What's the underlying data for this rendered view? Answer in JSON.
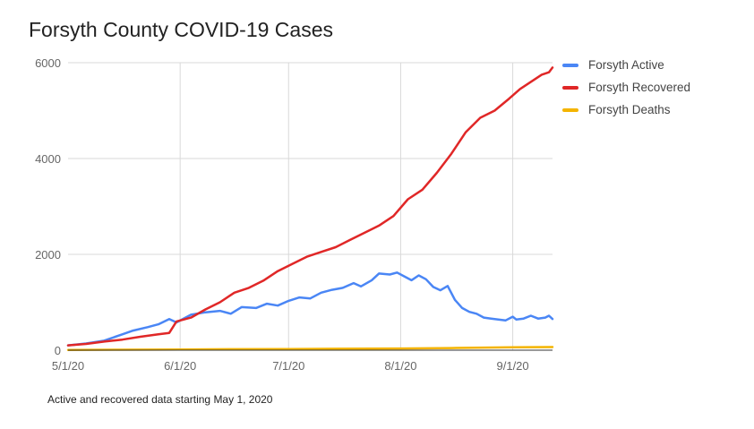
{
  "footnote": "Active and recovered data starting May 1, 2020",
  "chart_data": {
    "type": "line",
    "title": "Forsyth County COVID-19 Cases",
    "xlabel": "",
    "ylabel": "",
    "x_range": [
      "5/1/20",
      "9/12/20"
    ],
    "x_ticks": [
      {
        "date": "5/1/20",
        "label": "5/1/20"
      },
      {
        "date": "6/1/20",
        "label": "6/1/20"
      },
      {
        "date": "7/1/20",
        "label": "7/1/20"
      },
      {
        "date": "8/1/20",
        "label": "8/1/20"
      },
      {
        "date": "9/1/20",
        "label": "9/1/20"
      }
    ],
    "ylim": [
      0,
      6000
    ],
    "y_ticks": [
      0,
      2000,
      4000,
      6000
    ],
    "grid": true,
    "legend_position": "right",
    "series": [
      {
        "name": "Forsyth Active",
        "color": "#4a86f5",
        "points": [
          [
            "5/1/20",
            100
          ],
          [
            "5/6/20",
            140
          ],
          [
            "5/11/20",
            200
          ],
          [
            "5/16/20",
            330
          ],
          [
            "5/19/20",
            410
          ],
          [
            "5/23/20",
            480
          ],
          [
            "5/26/20",
            540
          ],
          [
            "5/29/20",
            650
          ],
          [
            "5/31/20",
            580
          ],
          [
            "6/4/20",
            740
          ],
          [
            "6/8/20",
            790
          ],
          [
            "6/12/20",
            820
          ],
          [
            "6/15/20",
            760
          ],
          [
            "6/18/20",
            900
          ],
          [
            "6/22/20",
            880
          ],
          [
            "6/25/20",
            970
          ],
          [
            "6/28/20",
            930
          ],
          [
            "7/1/20",
            1030
          ],
          [
            "7/4/20",
            1100
          ],
          [
            "7/7/20",
            1080
          ],
          [
            "7/10/20",
            1200
          ],
          [
            "7/13/20",
            1260
          ],
          [
            "7/16/20",
            1300
          ],
          [
            "7/19/20",
            1400
          ],
          [
            "7/21/20",
            1330
          ],
          [
            "7/24/20",
            1460
          ],
          [
            "7/26/20",
            1600
          ],
          [
            "7/29/20",
            1580
          ],
          [
            "7/31/20",
            1620
          ],
          [
            "8/2/20",
            1540
          ],
          [
            "8/4/20",
            1460
          ],
          [
            "8/6/20",
            1560
          ],
          [
            "8/8/20",
            1480
          ],
          [
            "8/10/20",
            1320
          ],
          [
            "8/12/20",
            1250
          ],
          [
            "8/14/20",
            1340
          ],
          [
            "8/16/20",
            1050
          ],
          [
            "8/18/20",
            880
          ],
          [
            "8/20/20",
            800
          ],
          [
            "8/22/20",
            760
          ],
          [
            "8/24/20",
            680
          ],
          [
            "8/26/20",
            660
          ],
          [
            "8/28/20",
            640
          ],
          [
            "8/30/20",
            620
          ],
          [
            "9/1/20",
            700
          ],
          [
            "9/2/20",
            640
          ],
          [
            "9/4/20",
            660
          ],
          [
            "9/6/20",
            720
          ],
          [
            "9/8/20",
            660
          ],
          [
            "9/10/20",
            680
          ],
          [
            "9/11/20",
            720
          ],
          [
            "9/12/20",
            650
          ]
        ]
      },
      {
        "name": "Forsyth Recovered",
        "color": "#e02727",
        "points": [
          [
            "5/1/20",
            100
          ],
          [
            "5/6/20",
            130
          ],
          [
            "5/11/20",
            180
          ],
          [
            "5/16/20",
            220
          ],
          [
            "5/21/20",
            280
          ],
          [
            "5/26/20",
            330
          ],
          [
            "5/29/20",
            360
          ],
          [
            "5/31/20",
            600
          ],
          [
            "6/4/20",
            680
          ],
          [
            "6/8/20",
            850
          ],
          [
            "6/12/20",
            1000
          ],
          [
            "6/16/20",
            1200
          ],
          [
            "6/20/20",
            1300
          ],
          [
            "6/24/20",
            1450
          ],
          [
            "6/28/20",
            1650
          ],
          [
            "7/2/20",
            1800
          ],
          [
            "7/6/20",
            1950
          ],
          [
            "7/10/20",
            2050
          ],
          [
            "7/14/20",
            2150
          ],
          [
            "7/18/20",
            2300
          ],
          [
            "7/22/20",
            2450
          ],
          [
            "7/26/20",
            2600
          ],
          [
            "7/30/20",
            2800
          ],
          [
            "8/3/20",
            3150
          ],
          [
            "8/7/20",
            3350
          ],
          [
            "8/11/20",
            3700
          ],
          [
            "8/15/20",
            4100
          ],
          [
            "8/19/20",
            4550
          ],
          [
            "8/23/20",
            4850
          ],
          [
            "8/27/20",
            5000
          ],
          [
            "8/31/20",
            5250
          ],
          [
            "9/3/20",
            5450
          ],
          [
            "9/6/20",
            5600
          ],
          [
            "9/9/20",
            5750
          ],
          [
            "9/11/20",
            5800
          ],
          [
            "9/12/20",
            5900
          ]
        ]
      },
      {
        "name": "Forsyth Deaths",
        "color": "#f4b400",
        "points": [
          [
            "5/1/20",
            5
          ],
          [
            "5/15/20",
            10
          ],
          [
            "6/1/20",
            15
          ],
          [
            "6/15/20",
            20
          ],
          [
            "7/1/20",
            25
          ],
          [
            "7/15/20",
            30
          ],
          [
            "8/1/20",
            35
          ],
          [
            "8/15/20",
            45
          ],
          [
            "9/1/20",
            60
          ],
          [
            "9/12/20",
            65
          ]
        ]
      }
    ]
  }
}
